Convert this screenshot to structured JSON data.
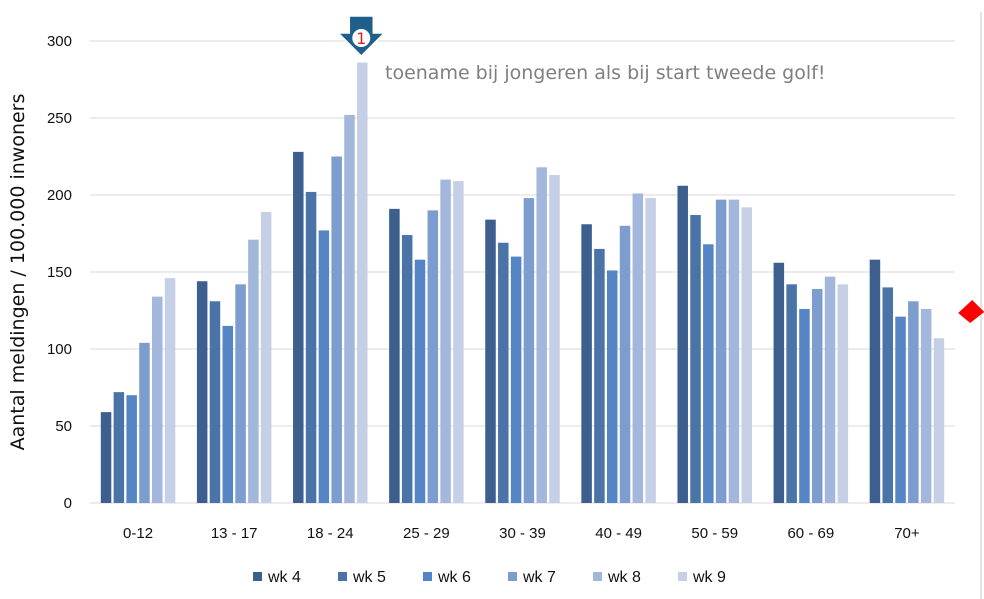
{
  "chart_data": {
    "type": "bar",
    "title": "",
    "xlabel": "",
    "ylabel": "Aantal meldingen / 100.000 inwoners",
    "ylim": [
      0,
      300
    ],
    "yticks": [
      0,
      50,
      100,
      150,
      200,
      250,
      300
    ],
    "grid": true,
    "legend_position": "bottom",
    "categories": [
      "0-12",
      "13 - 17",
      "18 - 24",
      "25 - 29",
      "30 - 39",
      "40 - 49",
      "50 - 59",
      "60 - 69",
      "70+"
    ],
    "series": [
      {
        "name": "wk 4",
        "color": "#3c5f8d",
        "values": [
          59,
          144,
          228,
          191,
          184,
          181,
          206,
          156,
          158
        ]
      },
      {
        "name": "wk 5",
        "color": "#4a73a8",
        "values": [
          72,
          131,
          202,
          174,
          169,
          165,
          187,
          142,
          140
        ]
      },
      {
        "name": "wk 6",
        "color": "#5585c4",
        "values": [
          70,
          115,
          177,
          158,
          160,
          151,
          168,
          126,
          121
        ]
      },
      {
        "name": "wk 7",
        "color": "#7c9dcd",
        "values": [
          104,
          142,
          225,
          190,
          198,
          180,
          197,
          139,
          131
        ]
      },
      {
        "name": "wk 8",
        "color": "#a3b7dc",
        "values": [
          134,
          171,
          252,
          210,
          218,
          201,
          197,
          147,
          126
        ]
      },
      {
        "name": "wk 9",
        "color": "#c5d0e6",
        "values": [
          146,
          189,
          286,
          209,
          213,
          198,
          192,
          142,
          107
        ]
      }
    ],
    "annotations": [
      {
        "marker": "1",
        "text": "toename bij jongeren als bij start tweede golf!",
        "category": "18 - 24",
        "series": "wk 9"
      }
    ],
    "highlight_arrow": {
      "category": "70+",
      "series": "wk 9",
      "color": "#ff0000"
    },
    "marker_color": "#1f5f8b",
    "marker_text_color": "#e02020"
  }
}
